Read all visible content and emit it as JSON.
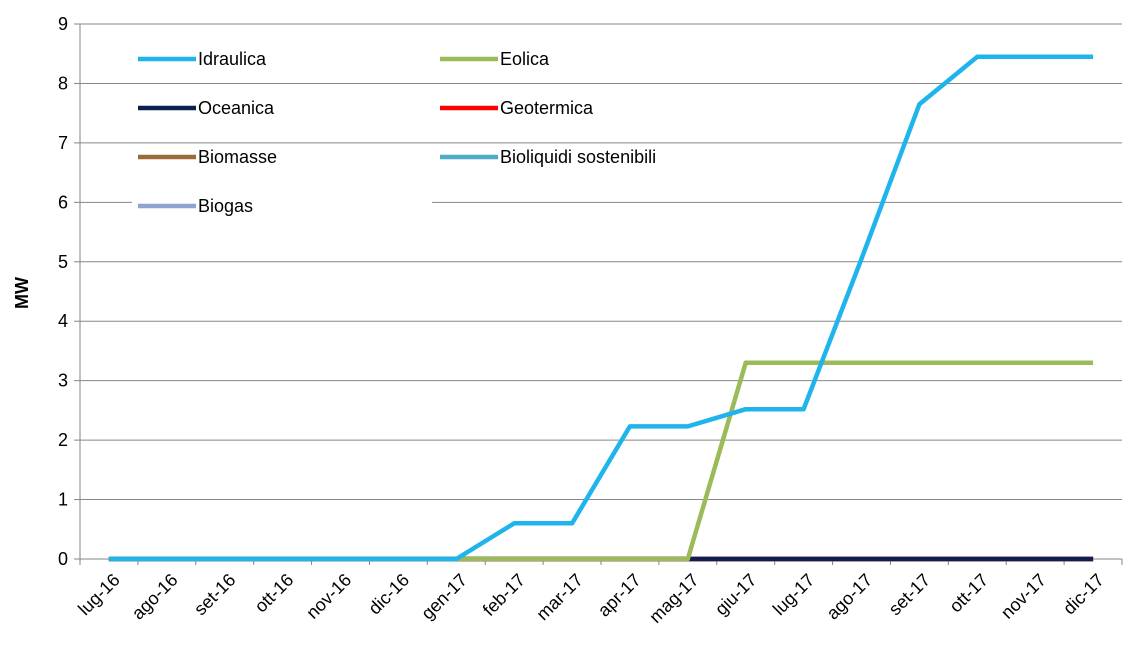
{
  "chart_data": {
    "type": "line",
    "title": "",
    "xlabel": "",
    "ylabel": "MW",
    "ylim": [
      0,
      9
    ],
    "yticks": [
      "0",
      "1",
      "2",
      "3",
      "4",
      "5",
      "6",
      "7",
      "8",
      "9"
    ],
    "categories": [
      "lug-16",
      "ago-16",
      "set-16",
      "ott-16",
      "nov-16",
      "dic-16",
      "gen-17",
      "feb-17",
      "mar-17",
      "apr-17",
      "mag-17",
      "giu-17",
      "lug-17",
      "ago-17",
      "set-17",
      "ott-17",
      "nov-17",
      "dic-17"
    ],
    "grid": "horizontal",
    "legend_position": "top-left",
    "series": [
      {
        "name": "Idraulica",
        "color": "#1fb5ec",
        "values": [
          0,
          0,
          0,
          0,
          0,
          0,
          0,
          0.6,
          0.6,
          2.23,
          2.23,
          2.52,
          2.52,
          5.05,
          7.65,
          8.45,
          8.45,
          8.45
        ]
      },
      {
        "name": "Eolica",
        "color": "#9bbb59",
        "values": [
          0,
          0,
          0,
          0,
          0,
          0,
          0,
          0,
          0,
          0,
          0,
          3.3,
          3.3,
          3.3,
          3.3,
          3.3,
          3.3,
          3.3
        ]
      },
      {
        "name": "Oceanica",
        "color": "#0d1f4f",
        "values": [
          0,
          0,
          0,
          0,
          0,
          0,
          0,
          0,
          0,
          0,
          0,
          0,
          0,
          0,
          0,
          0,
          0,
          0
        ]
      },
      {
        "name": "Geotermica",
        "color": "#ff0000",
        "values": [
          0,
          0,
          0,
          0,
          0,
          0,
          0,
          0,
          0,
          0,
          0,
          0,
          0,
          0,
          0,
          0,
          0,
          0
        ]
      },
      {
        "name": "Biomasse",
        "color": "#9c6a3a",
        "values": [
          0,
          0,
          0,
          0,
          0,
          0,
          0,
          0,
          0,
          0,
          0,
          0,
          0,
          0,
          0,
          0,
          0,
          0
        ]
      },
      {
        "name": "Bioliquidi sostenibili",
        "color": "#4bacc6",
        "values": [
          0,
          0,
          0,
          0,
          0,
          0,
          0,
          0,
          0,
          0,
          0,
          0,
          0,
          0,
          0,
          0,
          0,
          0
        ]
      },
      {
        "name": "Biogas",
        "color": "#8ea4cf",
        "values": [
          0,
          0,
          0,
          0,
          0,
          0,
          0,
          0,
          0,
          0,
          0,
          0,
          0,
          0,
          0,
          0,
          0,
          0
        ]
      }
    ]
  }
}
